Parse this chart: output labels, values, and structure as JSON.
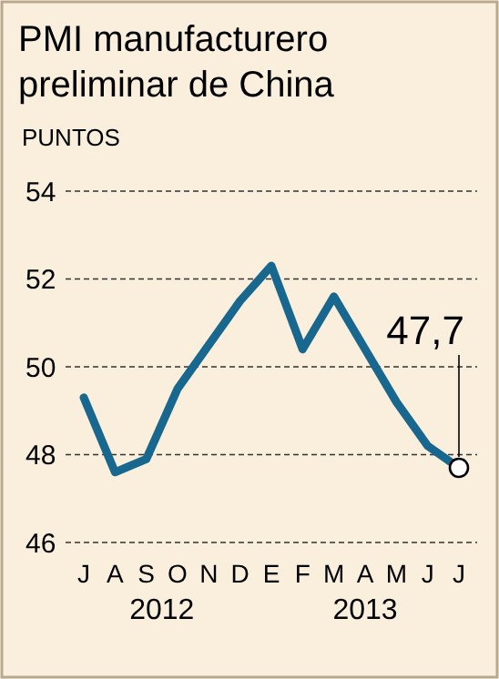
{
  "chart_data": {
    "type": "line",
    "title": "PMI manufacturero preliminar de China",
    "ylabel": "PUNTOS",
    "categories": [
      "J",
      "A",
      "S",
      "O",
      "N",
      "D",
      "E",
      "F",
      "M",
      "A",
      "M",
      "J",
      "J"
    ],
    "series": [
      {
        "color": "#17678f",
        "values": [
          49.3,
          47.6,
          47.9,
          49.5,
          50.5,
          51.5,
          52.3,
          50.4,
          51.6,
          50.4,
          49.2,
          48.2,
          47.7
        ],
        "value_labels": [
          null,
          null,
          null,
          null,
          null,
          null,
          null,
          null,
          null,
          null,
          null,
          null,
          "47,7"
        ]
      }
    ],
    "ylim": [
      46,
      54
    ],
    "yticks": [
      46,
      48,
      50,
      52,
      54
    ],
    "grid": "y",
    "annotations": [
      "2012",
      "2013"
    ]
  }
}
